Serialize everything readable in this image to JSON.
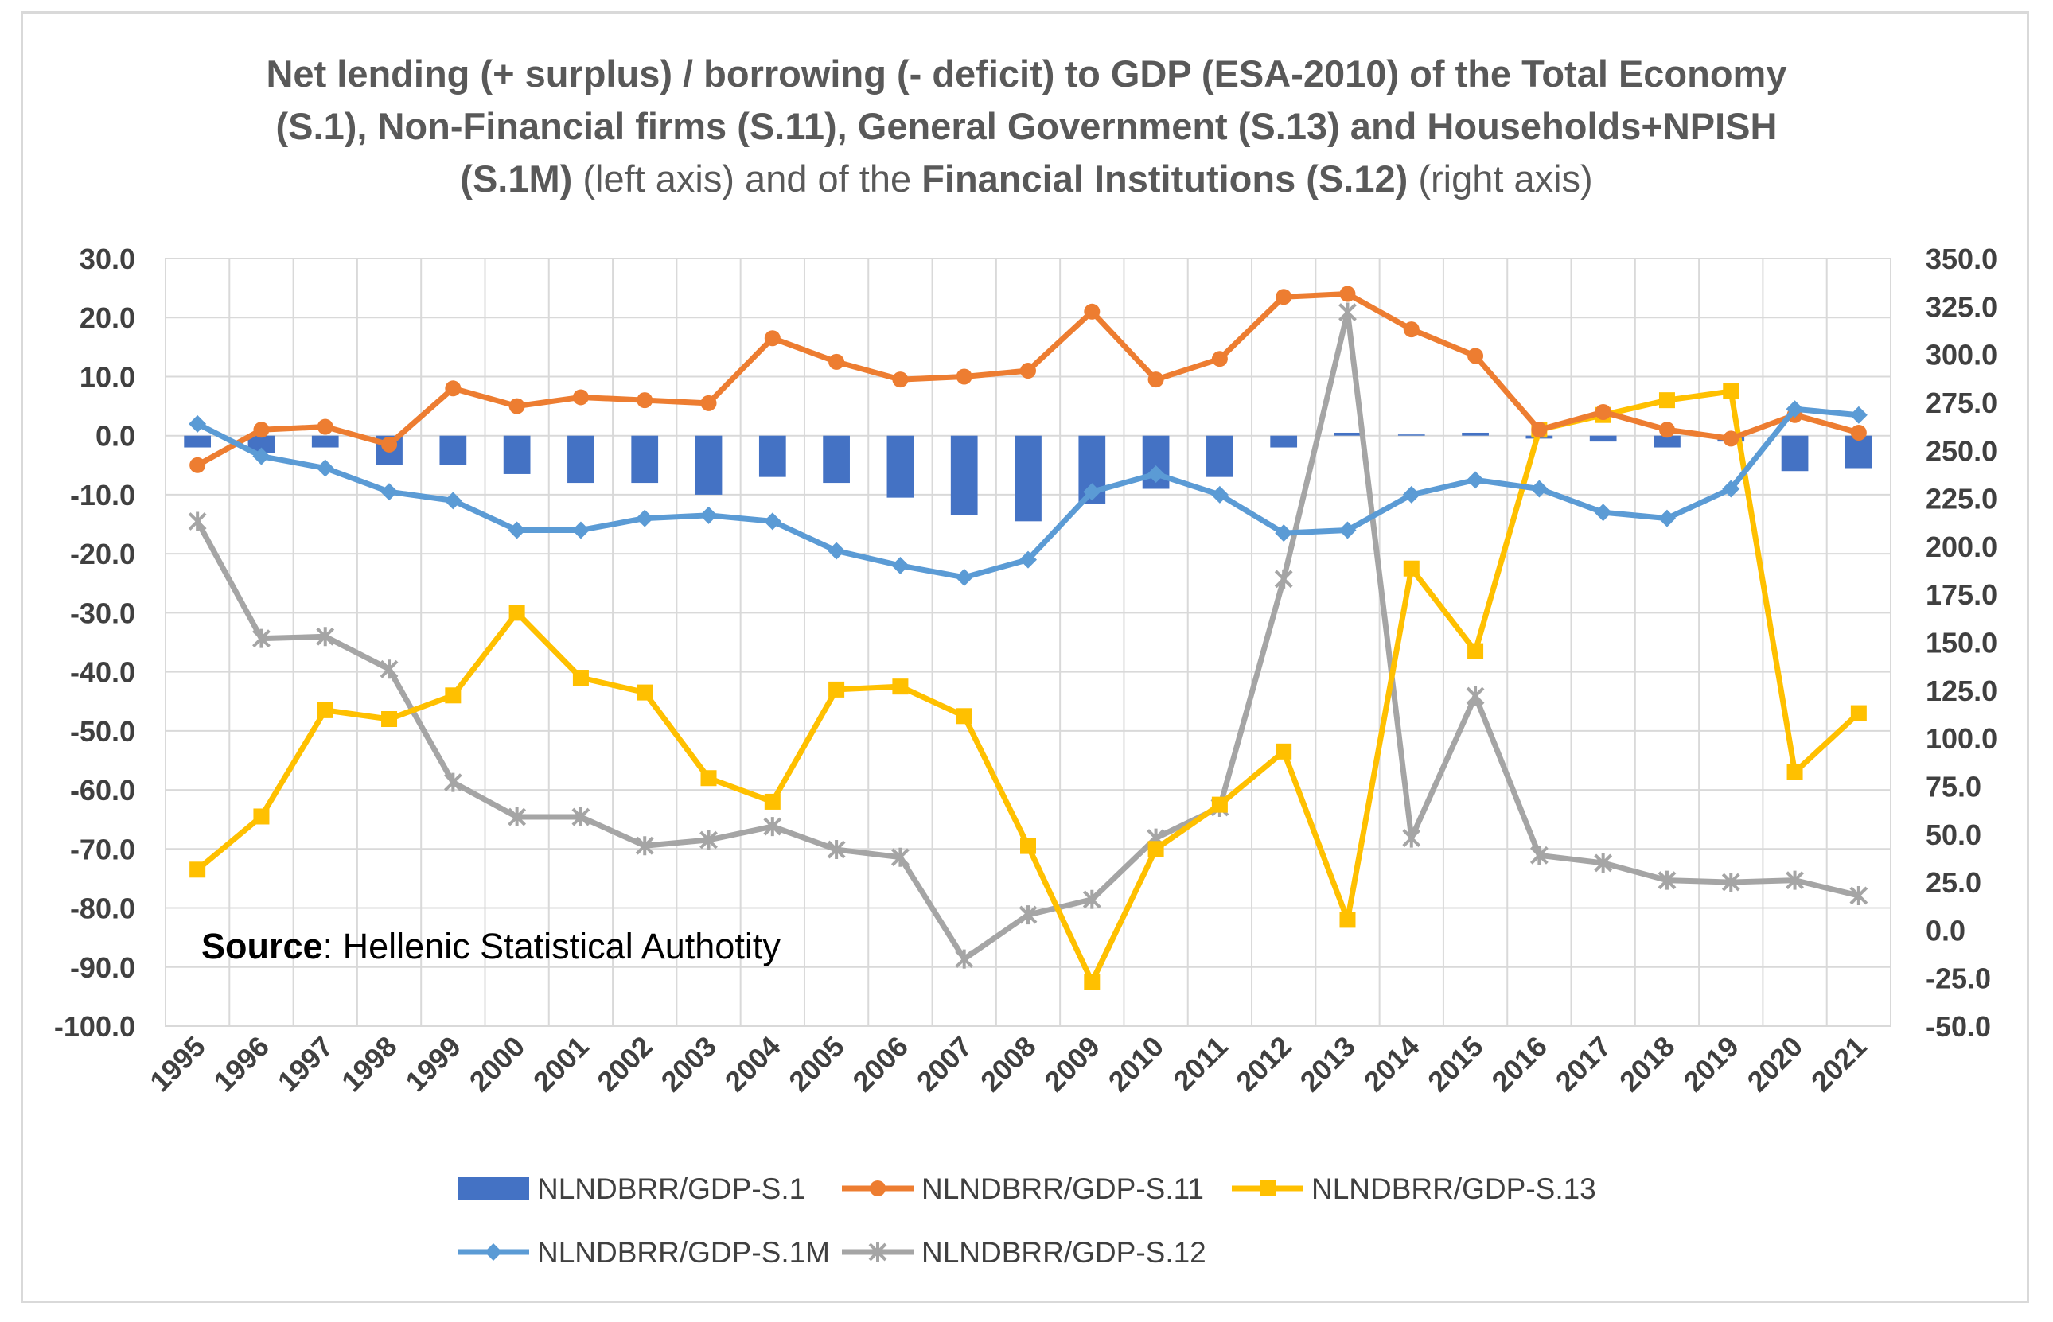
{
  "chart_data": {
    "type": "bar+line",
    "title": {
      "line1": "Net lending (+ surplus)  / borrowing (- deficit) to GDP (ESA-2010) of the Total Economy",
      "line2": "(S.1), Non-Financial firms (S.11), General Government (S.13) and Households+NPISH",
      "line3_bold_a": "(S.1M)",
      "line3_normal_a": " (left axis) and of the ",
      "line3_bold_b": "Financial Institutions (S.12)",
      "line3_normal_b": " (right axis)"
    },
    "source_label": "Source",
    "source_text": ": Hellenic Statistical Authotity",
    "categories": [
      "1995",
      "1996",
      "1997",
      "1998",
      "1999",
      "2000",
      "2001",
      "2002",
      "2003",
      "2004",
      "2005",
      "2006",
      "2007",
      "2008",
      "2009",
      "2010",
      "2011",
      "2012",
      "2013",
      "2014",
      "2015",
      "2016",
      "2017",
      "2018",
      "2019",
      "2020",
      "2021"
    ],
    "y_left": {
      "min": -100,
      "max": 30,
      "step": 10,
      "ticks": [
        "30.0",
        "20.0",
        "10.0",
        "0.0",
        "-10.0",
        "-20.0",
        "-30.0",
        "-40.0",
        "-50.0",
        "-60.0",
        "-70.0",
        "-80.0",
        "-90.0",
        "-100.0"
      ]
    },
    "y_right": {
      "min": -50,
      "max": 350,
      "step": 25,
      "ticks": [
        "350.0",
        "325.0",
        "300.0",
        "275.0",
        "250.0",
        "225.0",
        "200.0",
        "175.0",
        "150.0",
        "125.0",
        "100.0",
        "75.0",
        "50.0",
        "25.0",
        "0.0",
        "-25.0",
        "-50.0"
      ]
    },
    "grid": true,
    "legend_position": "bottom",
    "series": [
      {
        "name": "NLNDBRR/GDP-S.1",
        "kind": "bar",
        "axis": "left",
        "color": "#4472c4",
        "values": [
          -2.0,
          -3.0,
          -2.0,
          -5.0,
          -5.0,
          -6.5,
          -8.0,
          -8.0,
          -10.0,
          -7.0,
          -8.0,
          -10.5,
          -13.5,
          -14.5,
          -11.5,
          -9.0,
          -7.0,
          -2.0,
          0.5,
          0.2,
          0.5,
          -0.5,
          -1.0,
          -2.0,
          -1.0,
          -6.0,
          -5.5
        ]
      },
      {
        "name": "NLNDBRR/GDP-S.11",
        "kind": "line",
        "marker": "circle",
        "axis": "left",
        "color": "#ed7d31",
        "values": [
          -5.0,
          1.0,
          1.5,
          -1.5,
          8.0,
          5.0,
          6.5,
          6.0,
          5.5,
          16.5,
          12.5,
          9.5,
          10.0,
          11.0,
          21.0,
          9.5,
          13.0,
          23.5,
          24.0,
          18.0,
          13.5,
          1.0,
          4.0,
          1.0,
          -0.5,
          3.5,
          0.5
        ]
      },
      {
        "name": "NLNDBRR/GDP-S.13",
        "kind": "line",
        "marker": "square",
        "axis": "left",
        "color": "#ffc000",
        "values": [
          -73.5,
          -64.5,
          -46.5,
          -48.0,
          -44.0,
          -30.0,
          -41.0,
          -43.5,
          -58.0,
          -62.0,
          -43.0,
          -42.5,
          -47.5,
          -69.5,
          -92.5,
          -70.0,
          -62.5,
          -53.5,
          -82.0,
          -22.5,
          -36.5,
          1.0,
          3.5,
          6.0,
          7.5,
          -57.0,
          -47.0
        ]
      },
      {
        "name": "NLNDBRR/GDP-S.1M",
        "kind": "line",
        "marker": "diamond",
        "axis": "left",
        "color": "#5b9bd5",
        "values": [
          2.0,
          -3.5,
          -5.5,
          -9.5,
          -11.0,
          -16.0,
          -16.0,
          -14.0,
          -13.5,
          -14.5,
          -19.5,
          -22.0,
          -24.0,
          -21.0,
          -9.5,
          -6.5,
          -10.0,
          -16.5,
          -16.0,
          -10.0,
          -7.5,
          -9.0,
          -13.0,
          -14.0,
          -9.0,
          4.5,
          3.5
        ]
      },
      {
        "name": "NLNDBRR/GDP-S.12",
        "kind": "line",
        "marker": "star",
        "axis": "right",
        "color": "#a5a5a5",
        "values": [
          213.0,
          152.0,
          153.0,
          136.0,
          77.0,
          59.0,
          59.0,
          44.0,
          47.0,
          54.0,
          42.0,
          38.0,
          -15.0,
          8.0,
          16.0,
          48.0,
          64.0,
          183.0,
          322.0,
          48.0,
          122.0,
          39.0,
          35.0,
          26.0,
          25.0,
          26.0,
          18.0
        ]
      }
    ]
  }
}
